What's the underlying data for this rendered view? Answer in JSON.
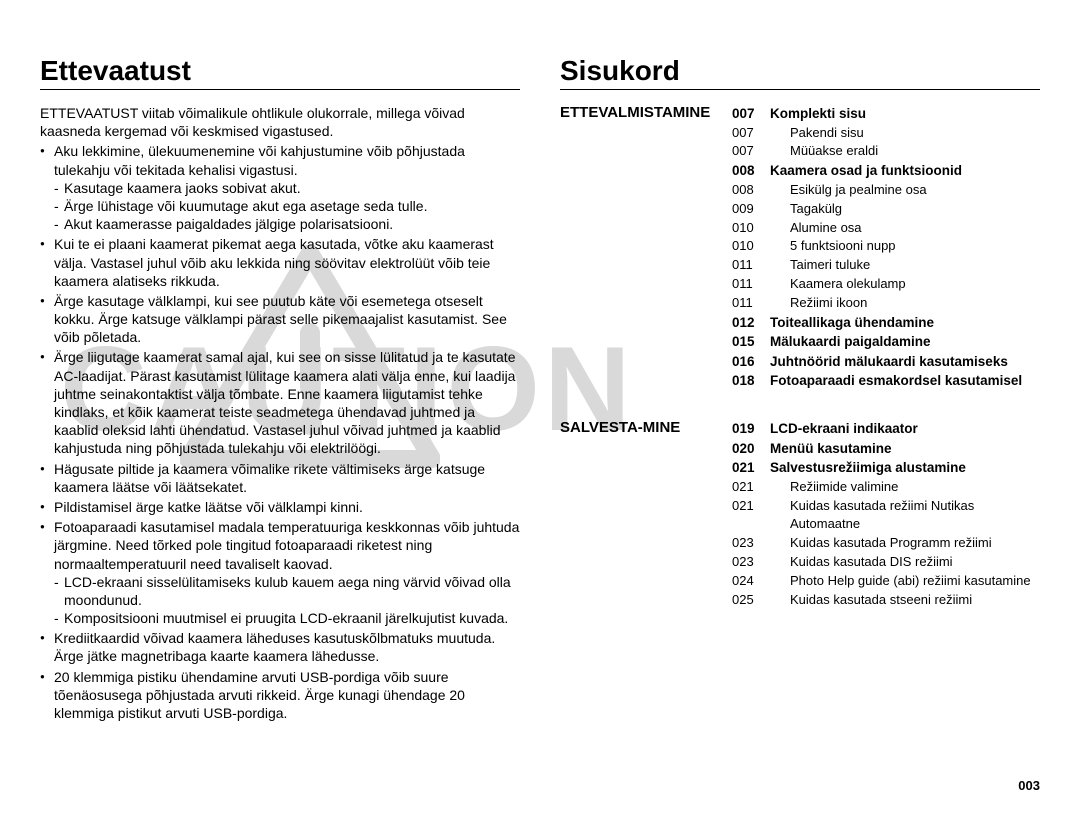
{
  "watermark_text": "CAUTION",
  "page_number": "003",
  "left": {
    "title": "Ettevaatust",
    "intro": "ETTEVAATUST viitab võimalikule ohtlikule olukorrale, millega võivad kaasneda kergemad või keskmised vigastused.",
    "bullets": [
      {
        "text": "Aku lekkimine, ülekuumenemine või kahjustumine võib põhjustada tulekahju või tekitada kehalisi vigastusi.",
        "subs": [
          "Kasutage kaamera jaoks sobivat akut.",
          "Ärge lühistage või kuumutage akut ega asetage seda tulle.",
          "Akut kaamerasse paigaldades jälgige polarisatsiooni."
        ]
      },
      {
        "text": "Kui te ei plaani kaamerat pikemat aega kasutada, võtke aku kaamerast välja. Vastasel juhul võib aku lekkida ning söövitav elektrolüüt võib teie kaamera alatiseks rikkuda."
      },
      {
        "text": "Ärge kasutage välklampi, kui see puutub käte või esemetega otseselt kokku. Ärge katsuge välklampi pärast selle pikemaajalist kasutamist. See võib põletada."
      },
      {
        "text": "Ärge liigutage kaamerat samal ajal, kui see on sisse lülitatud ja te kasutate AC-laadijat. Pärast kasutamist lülitage kaamera alati välja enne, kui laadija juhtme seinakontaktist välja tõmbate. Enne kaamera liigutamist tehke kindlaks, et kõik kaamerat teiste seadmetega ühendavad juhtmed ja kaablid oleksid lahti ühendatud. Vastasel juhul võivad juhtmed ja kaablid kahjustuda ning põhjustada tulekahju või elektrilöögi."
      },
      {
        "text": "Hägusate piltide ja kaamera võimalike rikete vältimiseks ärge katsuge kaamera läätse või läätsekatet."
      },
      {
        "text": "Pildistamisel ärge katke läätse või välklampi kinni."
      },
      {
        "text": "Fotoaparaadi kasutamisel madala temperatuuriga keskkonnas võib juhtuda järgmine. Need tõrked pole tingitud fotoaparaadi riketest ning normaaltemperatuuril need tavaliselt kaovad.",
        "subs": [
          "LCD-ekraani sisselülitamiseks kulub kauem aega ning värvid võivad olla moondunud.",
          "Kompositsiooni muutmisel ei pruugita LCD-ekraanil järelkujutist kuvada."
        ]
      },
      {
        "text": "Krediitkaardid võivad kaamera läheduses kasutuskõlbmatuks muutuda. Ärge jätke magnetribaga kaarte kaamera lähedusse."
      },
      {
        "text": "20 klemmiga pistiku ühendamine arvuti USB-pordiga võib suure tõenäosusega põhjustada arvuti rikkeid. Ärge kunagi ühendage 20 klemmiga pistikut arvuti USB-pordiga."
      }
    ]
  },
  "right": {
    "title": "Sisukord",
    "sections": [
      {
        "category": "ETTEVALMISTAMINE",
        "items": [
          {
            "page": "007",
            "title": "Komplekti sisu",
            "bold": true
          },
          {
            "page": "007",
            "title": "Pakendi sisu",
            "bold": false,
            "sub": true
          },
          {
            "page": "007",
            "title": "Müüakse eraldi",
            "bold": false,
            "sub": true
          },
          {
            "page": "008",
            "title": "Kaamera osad ja funktsioonid",
            "bold": true
          },
          {
            "page": "008",
            "title": "Esikülg ja pealmine osa",
            "bold": false,
            "sub": true
          },
          {
            "page": "009",
            "title": "Tagakülg",
            "bold": false,
            "sub": true
          },
          {
            "page": "010",
            "title": "Alumine osa",
            "bold": false,
            "sub": true
          },
          {
            "page": "010",
            "title": "5 funktsiooni nupp",
            "bold": false,
            "sub": true
          },
          {
            "page": "011",
            "title": "Taimeri tuluke",
            "bold": false,
            "sub": true
          },
          {
            "page": "011",
            "title": "Kaamera olekulamp",
            "bold": false,
            "sub": true
          },
          {
            "page": "011",
            "title": "Režiimi ikoon",
            "bold": false,
            "sub": true
          },
          {
            "page": "012",
            "title": "Toiteallikaga ühendamine",
            "bold": true
          },
          {
            "page": "015",
            "title": "Mälukaardi paigaldamine",
            "bold": true
          },
          {
            "page": "016",
            "title": "Juhtnöörid mälukaardi kasutamiseks",
            "bold": true
          },
          {
            "page": "018",
            "title": "Fotoaparaadi esmakordsel kasutamisel",
            "bold": true
          }
        ]
      },
      {
        "category": "SALVESTA-MINE",
        "items": [
          {
            "page": "019",
            "title": "LCD-ekraani indikaator",
            "bold": true
          },
          {
            "page": "020",
            "title": "Menüü kasutamine",
            "bold": true
          },
          {
            "page": "021",
            "title": "Salvestusrežiimiga alustamine",
            "bold": true
          },
          {
            "page": "021",
            "title": "Režiimide valimine",
            "bold": false,
            "sub": true
          },
          {
            "page": "021",
            "title": "Kuidas kasutada režiimi Nutikas Automaatne",
            "bold": false,
            "sub": true
          },
          {
            "page": "023",
            "title": "Kuidas kasutada Programm režiimi",
            "bold": false,
            "sub": true
          },
          {
            "page": "023",
            "title": "Kuidas kasutada DIS režiimi",
            "bold": false,
            "sub": true
          },
          {
            "page": "024",
            "title": "Photo Help guide (abi) režiimi kasutamine",
            "bold": false,
            "sub": true
          },
          {
            "page": "025",
            "title": "Kuidas kasutada stseeni režiimi",
            "bold": false,
            "sub": true
          }
        ]
      }
    ]
  }
}
